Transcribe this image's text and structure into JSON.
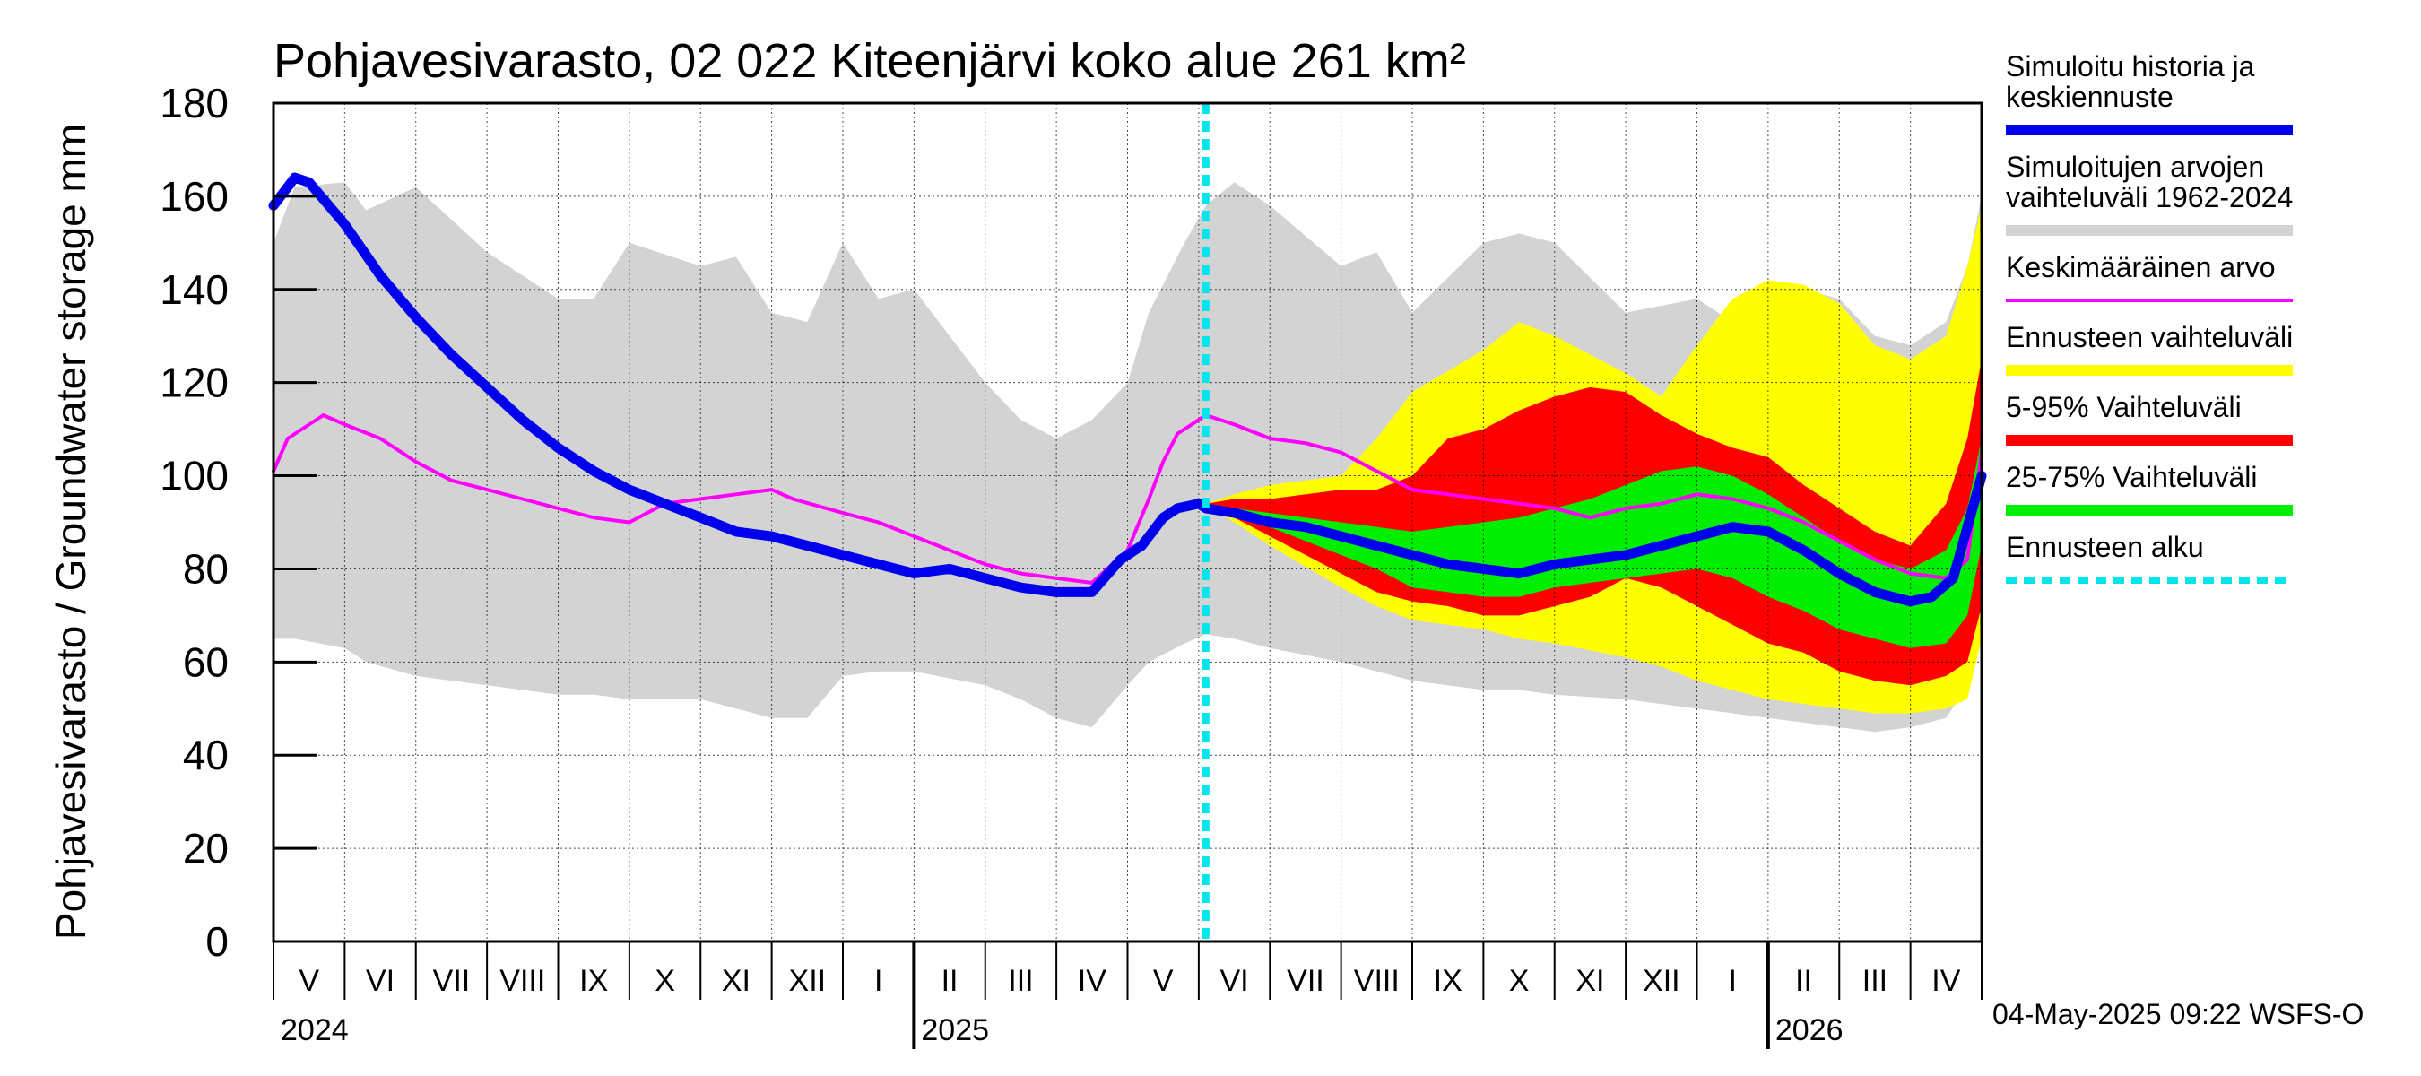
{
  "chart_data": {
    "type": "area",
    "title": "Pohjavesivarasto, 02 022 Kiteenjärvi koko alue 261 km²",
    "ylabel": "Pohjavesivarasto / Groundwater storage   mm",
    "ylim": [
      0,
      180
    ],
    "yticks": [
      "0",
      "20",
      "40",
      "60",
      "80",
      "100",
      "120",
      "140",
      "160",
      "180"
    ],
    "x_range_months": [
      0,
      24
    ],
    "x_note": "x in months since 2024-04-01",
    "forecast_start": 13.1,
    "months": [
      "V",
      "VI",
      "VII",
      "VIII",
      "IX",
      "X",
      "XI",
      "XII",
      "I",
      "II",
      "III",
      "IV",
      "V",
      "VI",
      "VII",
      "VIII",
      "IX",
      "X",
      "XI",
      "XII",
      "I",
      "II",
      "III",
      "IV"
    ],
    "year_labels": [
      {
        "label": "2024",
        "x": 0
      },
      {
        "label": "2025",
        "x": 9
      },
      {
        "label": "2026",
        "x": 21
      }
    ],
    "series": [
      {
        "name": "Simuloitujen arvojen vaihteluväli 1962-2024",
        "kind": "band",
        "color": "#d3d3d3",
        "x": [
          0,
          0.3,
          1,
          1.3,
          2,
          3,
          4,
          4.5,
          5,
          6,
          6.5,
          7,
          7.5,
          8,
          8.5,
          9,
          10,
          10.5,
          11,
          11.5,
          12,
          12.3,
          12.8,
          13.1,
          13.5,
          14,
          15,
          15.5,
          16,
          17,
          17.5,
          18,
          19,
          20,
          20.5,
          21,
          21.5,
          22,
          22.5,
          23,
          23.5,
          23.8,
          24
        ],
        "upper": [
          150,
          162,
          163,
          157,
          162,
          148,
          138,
          138,
          150,
          145,
          147,
          135,
          133,
          150,
          138,
          140,
          120,
          112,
          108,
          112,
          120,
          135,
          150,
          158,
          163,
          158,
          145,
          148,
          135,
          150,
          152,
          150,
          135,
          138,
          133,
          138,
          140,
          138,
          130,
          128,
          133,
          145,
          160
        ],
        "lower": [
          65,
          65,
          63,
          60,
          57,
          55,
          53,
          53,
          52,
          52,
          50,
          48,
          48,
          57,
          58,
          58,
          55,
          52,
          48,
          46,
          55,
          60,
          64,
          66,
          65,
          63,
          60,
          58,
          56,
          54,
          54,
          53,
          52,
          50,
          49,
          48,
          47,
          46,
          45,
          46,
          48,
          55,
          65
        ]
      },
      {
        "name": "Ennusteen vaihteluväli",
        "kind": "band",
        "color": "#ffff00",
        "x": [
          13.1,
          13.5,
          14,
          15,
          15.5,
          16,
          17,
          17.5,
          18,
          19,
          19.5,
          20,
          20.5,
          21,
          21.5,
          22,
          22.5,
          23,
          23.5,
          23.8,
          24
        ],
        "upper": [
          94,
          96,
          98,
          100,
          108,
          118,
          127,
          133,
          130,
          122,
          117,
          128,
          138,
          142,
          141,
          137,
          128,
          125,
          130,
          145,
          158
        ],
        "lower": [
          94,
          90,
          85,
          76,
          72,
          69,
          67,
          65,
          64,
          61,
          59,
          56,
          54,
          52,
          51,
          50,
          49,
          49,
          50,
          52,
          65
        ]
      },
      {
        "name": "5-95% Vaihteluväli",
        "kind": "band",
        "color": "#ff0000",
        "x": [
          13.1,
          13.5,
          14,
          15,
          15.5,
          16,
          16.5,
          17,
          17.5,
          18,
          18.5,
          19,
          19.5,
          20,
          20.5,
          21,
          21.5,
          22,
          22.5,
          23,
          23.5,
          23.8,
          24
        ],
        "upper": [
          94,
          95,
          95,
          97,
          97,
          100,
          108,
          110,
          114,
          117,
          119,
          118,
          113,
          109,
          106,
          104,
          98,
          93,
          88,
          85,
          94,
          108,
          125
        ],
        "lower": [
          94,
          91,
          87,
          79,
          75,
          73,
          72,
          70,
          70,
          72,
          74,
          78,
          76,
          72,
          68,
          64,
          62,
          58,
          56,
          55,
          57,
          60,
          72
        ]
      },
      {
        "name": "25-75% Vaihteluväli",
        "kind": "band",
        "color": "#00ee00",
        "x": [
          13.1,
          13.5,
          14,
          15,
          15.5,
          16,
          16.5,
          17,
          17.5,
          18,
          18.5,
          19,
          19.5,
          20,
          20.5,
          21,
          21.5,
          22,
          22.5,
          23,
          23.5,
          23.8,
          24
        ],
        "upper": [
          94,
          93,
          92,
          90,
          89,
          88,
          89,
          90,
          91,
          93,
          95,
          98,
          101,
          102,
          100,
          96,
          91,
          86,
          82,
          80,
          84,
          93,
          108
        ],
        "lower": [
          94,
          92,
          89,
          83,
          80,
          76,
          75,
          74,
          74,
          76,
          77,
          78,
          79,
          80,
          78,
          74,
          71,
          67,
          65,
          63,
          64,
          70,
          85
        ]
      },
      {
        "name": "Keskimääräinen arvo",
        "kind": "line",
        "color": "#ff00ff",
        "width": 4,
        "x": [
          0,
          0.2,
          0.7,
          1,
          1.5,
          2,
          2.5,
          3,
          3.5,
          4,
          4.5,
          5,
          5.5,
          6,
          6.5,
          7,
          7.3,
          8,
          8.5,
          9,
          9.5,
          10,
          10.5,
          11,
          11.5,
          12,
          12.3,
          12.5,
          12.7,
          13.1,
          13.5,
          14,
          14.5,
          15,
          15.5,
          16,
          16.5,
          17,
          17.5,
          18,
          18.5,
          19,
          19.5,
          20,
          20.5,
          21,
          21.5,
          22,
          22.5,
          23,
          23.5,
          23.8,
          24
        ],
        "y": [
          101,
          108,
          113,
          111,
          108,
          103,
          99,
          97,
          95,
          93,
          91,
          90,
          94,
          95,
          96,
          97,
          95,
          92,
          90,
          87,
          84,
          81,
          79,
          78,
          77,
          84,
          95,
          103,
          109,
          113,
          111,
          108,
          107,
          105,
          101,
          97,
          96,
          95,
          94,
          93,
          91,
          93,
          94,
          96,
          95,
          93,
          90,
          86,
          82,
          79,
          78,
          82,
          105
        ]
      },
      {
        "name": "Simuloitu historia ja keskiennuste",
        "kind": "line",
        "color": "#0000ee",
        "width": 11,
        "x": [
          0,
          0.2,
          0.3,
          0.5,
          1,
          1.5,
          2,
          2.5,
          3,
          3.5,
          4,
          4.5,
          5,
          5.5,
          6,
          6.5,
          7,
          7.5,
          8,
          8.5,
          9,
          9.5,
          10,
          10.5,
          11,
          11.5,
          11.9,
          12.2,
          12.5,
          12.7,
          13.0,
          13.1,
          13.5,
          14,
          14.5,
          15,
          15.5,
          16,
          16.5,
          17,
          17.5,
          18,
          18.5,
          19,
          19.5,
          20,
          20.5,
          21,
          21.5,
          22,
          22.5,
          23,
          23.3,
          23.6,
          24
        ],
        "y": [
          158,
          162,
          164,
          163,
          154,
          143,
          134,
          126,
          119,
          112,
          106,
          101,
          97,
          94,
          91,
          88,
          87,
          85,
          83,
          81,
          79,
          80,
          78,
          76,
          75,
          75,
          82,
          85,
          91,
          93,
          94,
          93,
          92,
          90,
          89,
          87,
          85,
          83,
          81,
          80,
          79,
          81,
          82,
          83,
          85,
          87,
          89,
          88,
          84,
          79,
          75,
          73,
          74,
          78,
          100
        ]
      },
      {
        "name": "Ennusteen alku",
        "kind": "vline",
        "color": "#00e5ee",
        "x": 13.1
      }
    ],
    "legend": [
      {
        "label": "Simuloitu historia ja keskiennuste",
        "color": "#0000ee",
        "style": "thick"
      },
      {
        "label": "Simuloitujen arvojen vaihteluväli 1962-2024",
        "color": "#d3d3d3",
        "style": "thick"
      },
      {
        "label": "Keskimääräinen arvo",
        "color": "#ff00ff",
        "style": "thin"
      },
      {
        "label": "Ennusteen vaihteluväli",
        "color": "#ffff00",
        "style": "thick"
      },
      {
        "label": "5-95% Vaihteluväli",
        "color": "#ff0000",
        "style": "thick"
      },
      {
        "label": "25-75% Vaihteluväli",
        "color": "#00ee00",
        "style": "thick"
      },
      {
        "label": "Ennusteen alku",
        "color": "#00e5ee",
        "style": "dashed"
      }
    ],
    "timestamp": "04-May-2025 09:22 WSFS-O"
  }
}
